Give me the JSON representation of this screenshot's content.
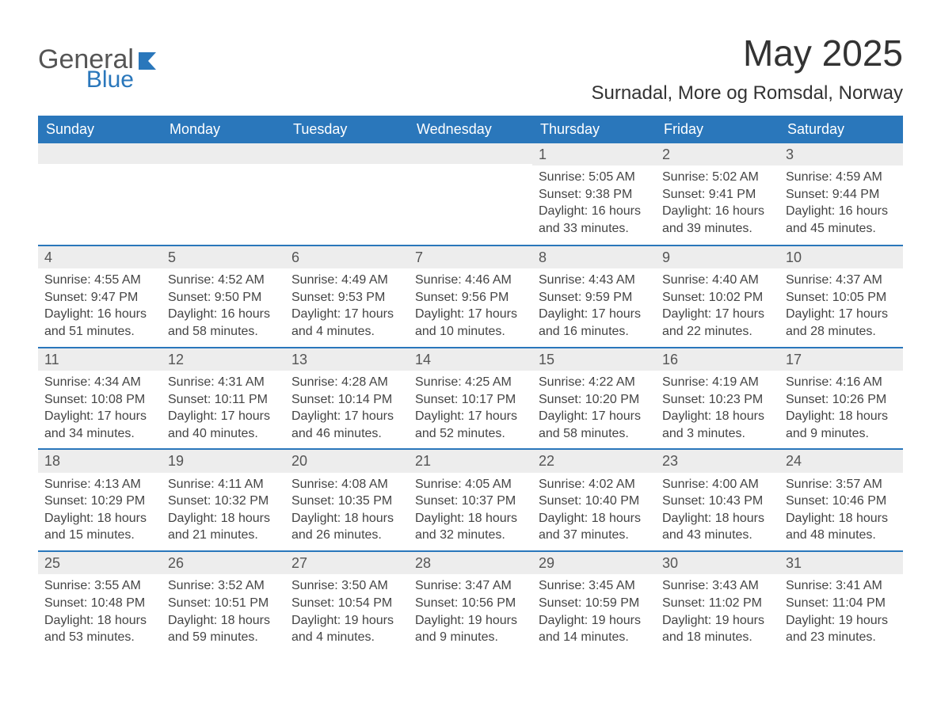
{
  "brand": {
    "text_general": "General",
    "text_blue": "Blue"
  },
  "title": "May 2025",
  "location": "Surnadal, More og Romsdal, Norway",
  "colors": {
    "header_bg": "#2a77bb",
    "header_text": "#ffffff",
    "daynum_bg": "#ededed",
    "daynum_text": "#555555",
    "body_text": "#444444",
    "rule": "#2a77bb",
    "page_bg": "#ffffff",
    "brand_gray": "#555555",
    "brand_blue": "#2a77bb"
  },
  "day_labels": [
    "Sunday",
    "Monday",
    "Tuesday",
    "Wednesday",
    "Thursday",
    "Friday",
    "Saturday"
  ],
  "weeks": [
    [
      {
        "empty": true
      },
      {
        "empty": true
      },
      {
        "empty": true
      },
      {
        "empty": true
      },
      {
        "num": "1",
        "sunrise": "Sunrise: 5:05 AM",
        "sunset": "Sunset: 9:38 PM",
        "day1": "Daylight: 16 hours",
        "day2": "and 33 minutes."
      },
      {
        "num": "2",
        "sunrise": "Sunrise: 5:02 AM",
        "sunset": "Sunset: 9:41 PM",
        "day1": "Daylight: 16 hours",
        "day2": "and 39 minutes."
      },
      {
        "num": "3",
        "sunrise": "Sunrise: 4:59 AM",
        "sunset": "Sunset: 9:44 PM",
        "day1": "Daylight: 16 hours",
        "day2": "and 45 minutes."
      }
    ],
    [
      {
        "num": "4",
        "sunrise": "Sunrise: 4:55 AM",
        "sunset": "Sunset: 9:47 PM",
        "day1": "Daylight: 16 hours",
        "day2": "and 51 minutes."
      },
      {
        "num": "5",
        "sunrise": "Sunrise: 4:52 AM",
        "sunset": "Sunset: 9:50 PM",
        "day1": "Daylight: 16 hours",
        "day2": "and 58 minutes."
      },
      {
        "num": "6",
        "sunrise": "Sunrise: 4:49 AM",
        "sunset": "Sunset: 9:53 PM",
        "day1": "Daylight: 17 hours",
        "day2": "and 4 minutes."
      },
      {
        "num": "7",
        "sunrise": "Sunrise: 4:46 AM",
        "sunset": "Sunset: 9:56 PM",
        "day1": "Daylight: 17 hours",
        "day2": "and 10 minutes."
      },
      {
        "num": "8",
        "sunrise": "Sunrise: 4:43 AM",
        "sunset": "Sunset: 9:59 PM",
        "day1": "Daylight: 17 hours",
        "day2": "and 16 minutes."
      },
      {
        "num": "9",
        "sunrise": "Sunrise: 4:40 AM",
        "sunset": "Sunset: 10:02 PM",
        "day1": "Daylight: 17 hours",
        "day2": "and 22 minutes."
      },
      {
        "num": "10",
        "sunrise": "Sunrise: 4:37 AM",
        "sunset": "Sunset: 10:05 PM",
        "day1": "Daylight: 17 hours",
        "day2": "and 28 minutes."
      }
    ],
    [
      {
        "num": "11",
        "sunrise": "Sunrise: 4:34 AM",
        "sunset": "Sunset: 10:08 PM",
        "day1": "Daylight: 17 hours",
        "day2": "and 34 minutes."
      },
      {
        "num": "12",
        "sunrise": "Sunrise: 4:31 AM",
        "sunset": "Sunset: 10:11 PM",
        "day1": "Daylight: 17 hours",
        "day2": "and 40 minutes."
      },
      {
        "num": "13",
        "sunrise": "Sunrise: 4:28 AM",
        "sunset": "Sunset: 10:14 PM",
        "day1": "Daylight: 17 hours",
        "day2": "and 46 minutes."
      },
      {
        "num": "14",
        "sunrise": "Sunrise: 4:25 AM",
        "sunset": "Sunset: 10:17 PM",
        "day1": "Daylight: 17 hours",
        "day2": "and 52 minutes."
      },
      {
        "num": "15",
        "sunrise": "Sunrise: 4:22 AM",
        "sunset": "Sunset: 10:20 PM",
        "day1": "Daylight: 17 hours",
        "day2": "and 58 minutes."
      },
      {
        "num": "16",
        "sunrise": "Sunrise: 4:19 AM",
        "sunset": "Sunset: 10:23 PM",
        "day1": "Daylight: 18 hours",
        "day2": "and 3 minutes."
      },
      {
        "num": "17",
        "sunrise": "Sunrise: 4:16 AM",
        "sunset": "Sunset: 10:26 PM",
        "day1": "Daylight: 18 hours",
        "day2": "and 9 minutes."
      }
    ],
    [
      {
        "num": "18",
        "sunrise": "Sunrise: 4:13 AM",
        "sunset": "Sunset: 10:29 PM",
        "day1": "Daylight: 18 hours",
        "day2": "and 15 minutes."
      },
      {
        "num": "19",
        "sunrise": "Sunrise: 4:11 AM",
        "sunset": "Sunset: 10:32 PM",
        "day1": "Daylight: 18 hours",
        "day2": "and 21 minutes."
      },
      {
        "num": "20",
        "sunrise": "Sunrise: 4:08 AM",
        "sunset": "Sunset: 10:35 PM",
        "day1": "Daylight: 18 hours",
        "day2": "and 26 minutes."
      },
      {
        "num": "21",
        "sunrise": "Sunrise: 4:05 AM",
        "sunset": "Sunset: 10:37 PM",
        "day1": "Daylight: 18 hours",
        "day2": "and 32 minutes."
      },
      {
        "num": "22",
        "sunrise": "Sunrise: 4:02 AM",
        "sunset": "Sunset: 10:40 PM",
        "day1": "Daylight: 18 hours",
        "day2": "and 37 minutes."
      },
      {
        "num": "23",
        "sunrise": "Sunrise: 4:00 AM",
        "sunset": "Sunset: 10:43 PM",
        "day1": "Daylight: 18 hours",
        "day2": "and 43 minutes."
      },
      {
        "num": "24",
        "sunrise": "Sunrise: 3:57 AM",
        "sunset": "Sunset: 10:46 PM",
        "day1": "Daylight: 18 hours",
        "day2": "and 48 minutes."
      }
    ],
    [
      {
        "num": "25",
        "sunrise": "Sunrise: 3:55 AM",
        "sunset": "Sunset: 10:48 PM",
        "day1": "Daylight: 18 hours",
        "day2": "and 53 minutes."
      },
      {
        "num": "26",
        "sunrise": "Sunrise: 3:52 AM",
        "sunset": "Sunset: 10:51 PM",
        "day1": "Daylight: 18 hours",
        "day2": "and 59 minutes."
      },
      {
        "num": "27",
        "sunrise": "Sunrise: 3:50 AM",
        "sunset": "Sunset: 10:54 PM",
        "day1": "Daylight: 19 hours",
        "day2": "and 4 minutes."
      },
      {
        "num": "28",
        "sunrise": "Sunrise: 3:47 AM",
        "sunset": "Sunset: 10:56 PM",
        "day1": "Daylight: 19 hours",
        "day2": "and 9 minutes."
      },
      {
        "num": "29",
        "sunrise": "Sunrise: 3:45 AM",
        "sunset": "Sunset: 10:59 PM",
        "day1": "Daylight: 19 hours",
        "day2": "and 14 minutes."
      },
      {
        "num": "30",
        "sunrise": "Sunrise: 3:43 AM",
        "sunset": "Sunset: 11:02 PM",
        "day1": "Daylight: 19 hours",
        "day2": "and 18 minutes."
      },
      {
        "num": "31",
        "sunrise": "Sunrise: 3:41 AM",
        "sunset": "Sunset: 11:04 PM",
        "day1": "Daylight: 19 hours",
        "day2": "and 23 minutes."
      }
    ]
  ]
}
